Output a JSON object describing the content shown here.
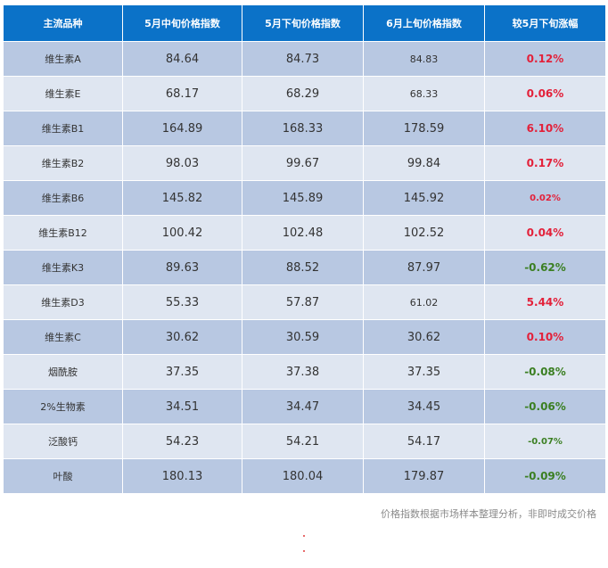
{
  "table": {
    "headers": [
      "主流品种",
      "5月中旬价格指数",
      "5月下旬价格指数",
      "6月上旬价格指数",
      "较5月下旬涨幅"
    ],
    "rows": [
      {
        "name": "维生素A",
        "mid_may": "84.64",
        "late_may": "84.73",
        "early_june": "84.83",
        "change": "0.12%",
        "direction": "up"
      },
      {
        "name": "维生素E",
        "mid_may": "68.17",
        "late_may": "68.29",
        "early_june": "68.33",
        "change": "0.06%",
        "direction": "up"
      },
      {
        "name": "维生素B1",
        "mid_may": "164.89",
        "late_may": "168.33",
        "early_june": "178.59",
        "change": "6.10%",
        "direction": "up"
      },
      {
        "name": "维生素B2",
        "mid_may": "98.03",
        "late_may": "99.67",
        "early_june": "99.84",
        "change": "0.17%",
        "direction": "up"
      },
      {
        "name": "维生素B6",
        "mid_may": "145.82",
        "late_may": "145.89",
        "early_june": "145.92",
        "change": "0.02%",
        "direction": "up"
      },
      {
        "name": "维生素B12",
        "mid_may": "100.42",
        "late_may": "102.48",
        "early_june": "102.52",
        "change": "0.04%",
        "direction": "up"
      },
      {
        "name": "维生素K3",
        "mid_may": "89.63",
        "late_may": "88.52",
        "early_june": "87.97",
        "change": "-0.62%",
        "direction": "down"
      },
      {
        "name": "维生素D3",
        "mid_may": "55.33",
        "late_may": "57.87",
        "early_june": "61.02",
        "change": "5.44%",
        "direction": "up"
      },
      {
        "name": "维生素C",
        "mid_may": "30.62",
        "late_may": "30.59",
        "early_june": "30.62",
        "change": "0.10%",
        "direction": "up"
      },
      {
        "name": "烟酰胺",
        "mid_may": "37.35",
        "late_may": "37.38",
        "early_june": "37.35",
        "change": "-0.08%",
        "direction": "down"
      },
      {
        "name": "2%生物素",
        "mid_may": "34.51",
        "late_may": "34.47",
        "early_june": "34.45",
        "change": "-0.06%",
        "direction": "down"
      },
      {
        "name": "泛酸钙",
        "mid_may": "54.23",
        "late_may": "54.21",
        "early_june": "54.17",
        "change": "-0.07%",
        "direction": "down"
      },
      {
        "name": "叶酸",
        "mid_may": "180.13",
        "late_may": "180.04",
        "early_june": "179.87",
        "change": "-0.09%",
        "direction": "down"
      }
    ]
  },
  "footnote": "价格指数根据市场样本整理分析，非即时成交价格",
  "colors": {
    "header_bg": "#0b72c8",
    "row_odd_bg": "#b8c8e2",
    "row_even_bg": "#dfe6f1",
    "up_color": "#e3213a",
    "down_color": "#3b7f22"
  }
}
